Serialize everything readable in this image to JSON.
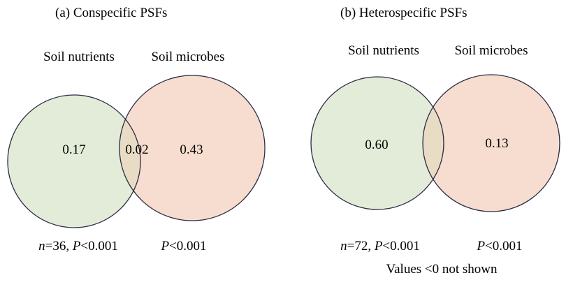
{
  "panel_a": {
    "title": "(a) Conspecific PSFs",
    "set_left_label": "Soil nutrients",
    "set_right_label": "Soil microbes",
    "values": {
      "left_only": "0.17",
      "overlap": "0.02",
      "right_only": "0.43"
    },
    "stats_left": {
      "n_var": "n",
      "n_text": "=36, ",
      "p_var": "P",
      "p_text": "<0.001"
    },
    "stats_right": {
      "p_var": "P",
      "p_text": "<0.001"
    }
  },
  "panel_b": {
    "title": "(b) Heterospecific PSFs",
    "set_left_label": "Soil nutrients",
    "set_right_label": "Soil microbes",
    "values": {
      "left_only": "0.60",
      "right_only": "0.13"
    },
    "stats_left": {
      "n_var": "n",
      "n_text": "=72, ",
      "p_var": "P",
      "p_text": "<0.001"
    },
    "stats_right": {
      "p_var": "P",
      "p_text": "<0.001"
    }
  },
  "footnote": "Values <0 not shown",
  "colors": {
    "nutrients_fill": "#e3ecd8",
    "microbes_fill": "#f7ddcf",
    "overlap_fill": "#e9dcc4",
    "outline": "#2c2c45"
  }
}
